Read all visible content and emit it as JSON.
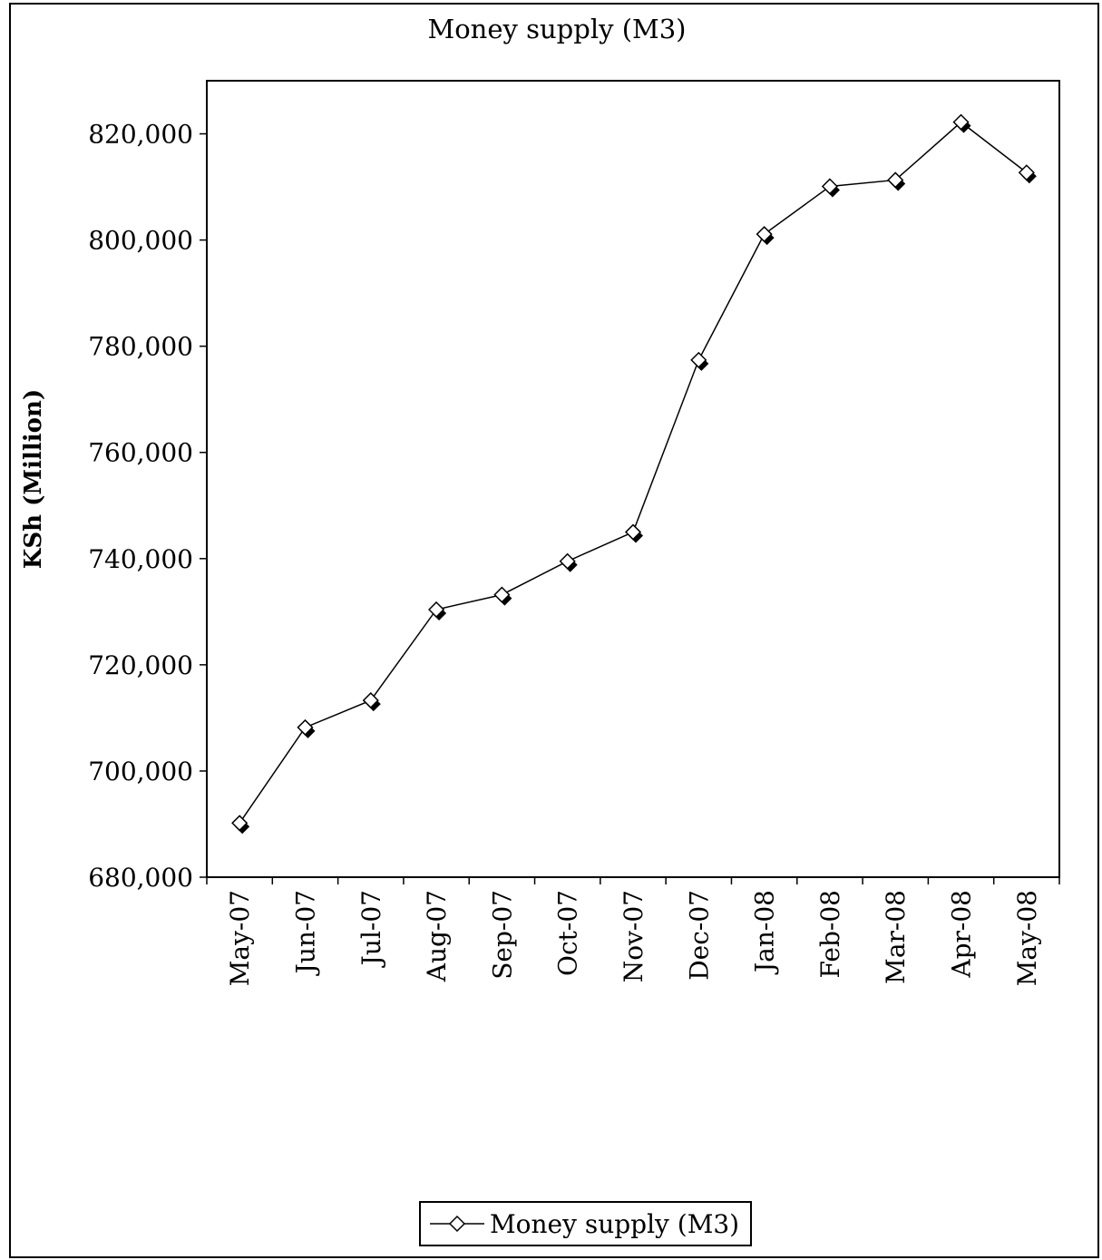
{
  "chart_data": {
    "type": "line",
    "title": "Money supply (M3)",
    "xlabel": "",
    "ylabel": "KSh (Million)",
    "categories": [
      "May-07",
      "Jun-07",
      "Jul-07",
      "Aug-07",
      "Sep-07",
      "Oct-07",
      "Nov-07",
      "Dec-07",
      "Jan-08",
      "Feb-08",
      "Mar-08",
      "Apr-08",
      "May-08"
    ],
    "series": [
      {
        "name": "Money supply (M3)",
        "values": [
          690200,
          708200,
          713300,
          730400,
          733200,
          739500,
          745000,
          777400,
          801100,
          810100,
          811300,
          822200,
          812700
        ]
      }
    ],
    "ylim": [
      680000,
      830000
    ],
    "yticks": [
      680000,
      700000,
      720000,
      740000,
      760000,
      780000,
      800000,
      820000
    ],
    "ytick_labels": [
      "680,000",
      "700,000",
      "720,000",
      "740,000",
      "760,000",
      "780,000",
      "800,000",
      "820,000"
    ],
    "grid": false,
    "legend_position": "bottom",
    "colors": {
      "line": "#000000",
      "marker_fill": "#ffffff",
      "marker_shadow": "#000000"
    }
  }
}
